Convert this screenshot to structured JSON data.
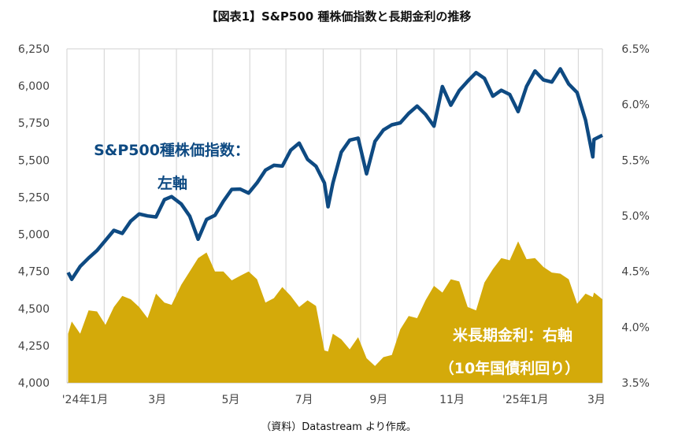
{
  "chart_data": {
    "type": "line+area",
    "title": "【図表1】S&P500 種株価指数と長期金利の推移",
    "source_note": "（資料）Datastream より作成。",
    "x_tick_labels": [
      "'24年1月",
      "3月",
      "5月",
      "7月",
      "9月",
      "11月",
      "'25年1月",
      "3月"
    ],
    "x_tick_dates": [
      "2024-01-01",
      "2024-03-01",
      "2024-05-01",
      "2024-07-01",
      "2024-09-01",
      "2024-11-01",
      "2025-01-01",
      "2025-03-01"
    ],
    "x_range": [
      "2024-01-01",
      "2025-03-21"
    ],
    "grid": "vertical monthly",
    "left_axis": {
      "ylim": [
        4000,
        6250
      ],
      "ticks": [
        "4,000",
        "4,250",
        "4,500",
        "4,750",
        "5,000",
        "5,250",
        "5,500",
        "5,750",
        "6,000",
        "6,250"
      ]
    },
    "right_axis": {
      "ylim": [
        3.5,
        6.5
      ],
      "ticks": [
        "3.5%",
        "4.0%",
        "4.5%",
        "5.0%",
        "5.5%",
        "6.0%",
        "6.5%"
      ]
    },
    "annotations": {
      "sp500_line1": "S&P500種株価指数：",
      "sp500_line2": "左軸",
      "yield_line1": "米長期金利：右軸",
      "yield_line2": "（10年国債利回り）"
    },
    "colors": {
      "sp500": "#0e4a82",
      "yield": "#d4aa0a"
    },
    "dates": [
      "2024-01-02",
      "2024-01-05",
      "2024-01-12",
      "2024-01-19",
      "2024-01-26",
      "2024-02-02",
      "2024-02-09",
      "2024-02-16",
      "2024-02-23",
      "2024-03-01",
      "2024-03-08",
      "2024-03-15",
      "2024-03-22",
      "2024-03-28",
      "2024-04-05",
      "2024-04-12",
      "2024-04-19",
      "2024-04-26",
      "2024-05-03",
      "2024-05-10",
      "2024-05-17",
      "2024-05-24",
      "2024-05-31",
      "2024-06-07",
      "2024-06-14",
      "2024-06-21",
      "2024-06-28",
      "2024-07-05",
      "2024-07-12",
      "2024-07-19",
      "2024-07-26",
      "2024-08-02",
      "2024-08-05",
      "2024-08-09",
      "2024-08-16",
      "2024-08-23",
      "2024-08-30",
      "2024-09-06",
      "2024-09-13",
      "2024-09-20",
      "2024-09-27",
      "2024-10-04",
      "2024-10-11",
      "2024-10-18",
      "2024-10-25",
      "2024-11-01",
      "2024-11-08",
      "2024-11-15",
      "2024-11-22",
      "2024-11-29",
      "2024-12-06",
      "2024-12-13",
      "2024-12-20",
      "2024-12-27",
      "2025-01-03",
      "2025-01-10",
      "2025-01-17",
      "2025-01-24",
      "2025-01-31",
      "2025-02-07",
      "2025-02-14",
      "2025-02-21",
      "2025-02-28",
      "2025-03-07",
      "2025-03-13",
      "2025-03-14",
      "2025-03-21"
    ],
    "series": [
      {
        "name": "S&P500種株価指数",
        "axis": "left",
        "values": [
          4743,
          4697,
          4784,
          4840,
          4891,
          4959,
          5027,
          5006,
          5089,
          5137,
          5124,
          5117,
          5234,
          5254,
          5204,
          5123,
          4967,
          5100,
          5128,
          5223,
          5303,
          5305,
          5278,
          5347,
          5432,
          5465,
          5460,
          5567,
          5615,
          5505,
          5459,
          5346,
          5186,
          5344,
          5554,
          5635,
          5648,
          5408,
          5626,
          5703,
          5738,
          5751,
          5815,
          5864,
          5808,
          5729,
          5996,
          5870,
          5969,
          6032,
          6090,
          6051,
          5931,
          5971,
          5942,
          5827,
          5997,
          6101,
          6041,
          6026,
          6115,
          6013,
          5955,
          5770,
          5522,
          5639,
          5668
        ]
      },
      {
        "name": "米長期金利（10年国債利回り）",
        "axis": "right",
        "unit": "%",
        "values": [
          3.94,
          4.05,
          3.94,
          4.15,
          4.14,
          4.02,
          4.18,
          4.28,
          4.25,
          4.18,
          4.08,
          4.3,
          4.22,
          4.2,
          4.38,
          4.5,
          4.62,
          4.67,
          4.5,
          4.5,
          4.42,
          4.46,
          4.5,
          4.43,
          4.22,
          4.26,
          4.36,
          4.28,
          4.18,
          4.24,
          4.19,
          3.79,
          3.78,
          3.94,
          3.89,
          3.8,
          3.91,
          3.72,
          3.65,
          3.73,
          3.75,
          3.98,
          4.1,
          4.08,
          4.24,
          4.37,
          4.31,
          4.43,
          4.41,
          4.18,
          4.15,
          4.4,
          4.52,
          4.62,
          4.6,
          4.77,
          4.61,
          4.62,
          4.54,
          4.49,
          4.48,
          4.43,
          4.21,
          4.3,
          4.27,
          4.31,
          4.25
        ]
      }
    ]
  }
}
